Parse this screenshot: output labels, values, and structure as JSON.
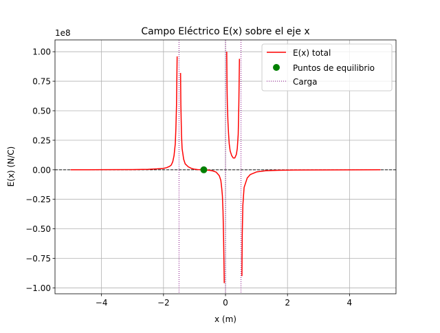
{
  "chart_data": {
    "type": "line",
    "title": "Campo Eléctrico E(x) sobre el eje x",
    "xlabel": "x (m)",
    "ylabel": "E(x) (N/C)",
    "y_offset_label": "1e8",
    "y_scale": 100000000,
    "xlim": [
      -5.5,
      5.5
    ],
    "ylim": [
      -1.05,
      1.1
    ],
    "x_ticks": [
      -4,
      -2,
      0,
      2,
      4
    ],
    "x_tick_labels": [
      "−4",
      "−2",
      "0",
      "2",
      "4"
    ],
    "y_ticks": [
      -1.0,
      -0.75,
      -0.5,
      -0.25,
      0.0,
      0.25,
      0.5,
      0.75,
      1.0
    ],
    "y_tick_labels": [
      "−1.00",
      "−0.75",
      "−0.50",
      "−0.25",
      "0.00",
      "0.25",
      "0.50",
      "0.75",
      "1.00"
    ],
    "grid": true,
    "legend_position": "top-right",
    "zero_line": true,
    "charges_x": [
      -1.5,
      0.0,
      0.5
    ],
    "series": [
      {
        "name": "E(x) total",
        "color": "#ff0000",
        "segments": [
          [
            [
              -5.0,
              0.0
            ],
            [
              -4.0,
              0.001
            ],
            [
              -3.0,
              0.002
            ],
            [
              -2.5,
              0.004
            ],
            [
              -2.2,
              0.008
            ],
            [
              -2.0,
              0.012
            ],
            [
              -1.9,
              0.018
            ],
            [
              -1.8,
              0.03
            ],
            [
              -1.75,
              0.04
            ],
            [
              -1.7,
              0.07
            ],
            [
              -1.66,
              0.12
            ],
            [
              -1.62,
              0.22
            ],
            [
              -1.6,
              0.35
            ],
            [
              -1.58,
              0.55
            ],
            [
              -1.56,
              0.96
            ]
          ],
          [
            [
              -1.45,
              0.82
            ],
            [
              -1.44,
              0.55
            ],
            [
              -1.42,
              0.3
            ],
            [
              -1.4,
              0.18
            ],
            [
              -1.35,
              0.09
            ],
            [
              -1.3,
              0.05
            ],
            [
              -1.2,
              0.025
            ],
            [
              -1.1,
              0.012
            ],
            [
              -1.0,
              0.005
            ],
            [
              -0.9,
              0.002
            ],
            [
              -0.7,
              0.0
            ],
            [
              -0.5,
              -0.005
            ],
            [
              -0.4,
              -0.01
            ],
            [
              -0.3,
              -0.02
            ],
            [
              -0.2,
              -0.05
            ],
            [
              -0.15,
              -0.09
            ],
            [
              -0.12,
              -0.16
            ],
            [
              -0.1,
              -0.22
            ],
            [
              -0.08,
              -0.35
            ],
            [
              -0.06,
              -0.6
            ],
            [
              -0.04,
              -0.96
            ]
          ],
          [
            [
              0.04,
              1.0
            ],
            [
              0.05,
              0.7
            ],
            [
              0.06,
              0.55
            ],
            [
              0.08,
              0.4
            ],
            [
              0.1,
              0.3
            ],
            [
              0.12,
              0.22
            ],
            [
              0.15,
              0.16
            ],
            [
              0.2,
              0.12
            ],
            [
              0.25,
              0.1
            ],
            [
              0.3,
              0.1
            ],
            [
              0.35,
              0.13
            ],
            [
              0.38,
              0.18
            ],
            [
              0.41,
              0.3
            ],
            [
              0.43,
              0.55
            ],
            [
              0.45,
              0.94
            ]
          ],
          [
            [
              0.53,
              -0.9
            ],
            [
              0.54,
              -0.55
            ],
            [
              0.56,
              -0.3
            ],
            [
              0.6,
              -0.15
            ],
            [
              0.7,
              -0.07
            ],
            [
              0.8,
              -0.04
            ],
            [
              1.0,
              -0.018
            ],
            [
              1.3,
              -0.008
            ],
            [
              1.7,
              -0.004
            ],
            [
              2.2,
              -0.002
            ],
            [
              3.0,
              -0.001
            ],
            [
              4.0,
              -0.0005
            ],
            [
              5.0,
              0.0
            ]
          ]
        ]
      },
      {
        "name": "Puntos de equilibrio",
        "color": "#008000",
        "points": [
          [
            -0.7,
            0.0
          ]
        ]
      },
      {
        "name": "Carga",
        "color": "#800080"
      }
    ]
  }
}
